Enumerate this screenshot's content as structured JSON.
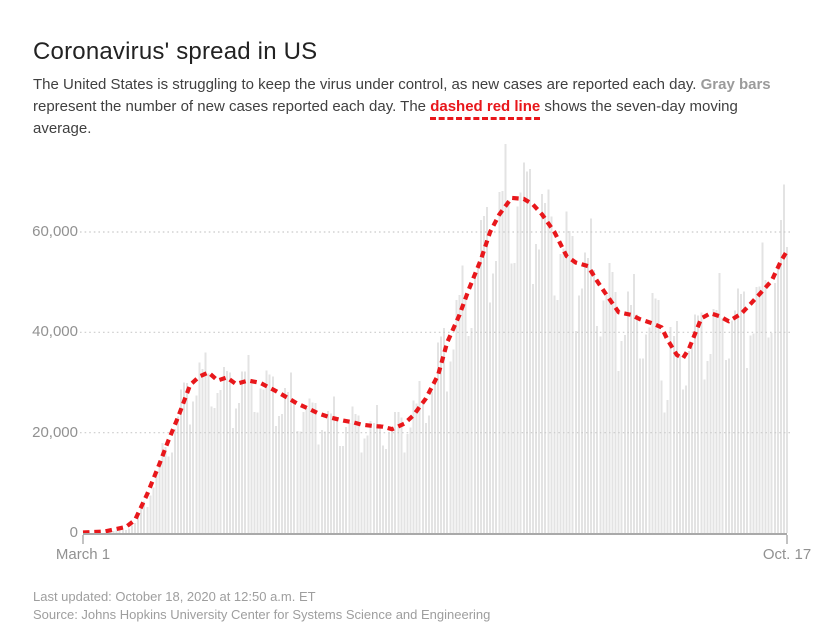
{
  "page": {
    "title": "Coronavirus' spread in US",
    "description": {
      "part1": "The United States is struggling to keep the virus under control, as new cases are reported each day. ",
      "bold_gray": "Gray bars",
      "part2": " represent the number of new cases reported each day. The ",
      "bold_red": "dashed red line",
      "part3": " shows the seven-day moving average."
    },
    "footer": {
      "last_updated": "Last updated: October 18, 2020 at 12:50 a.m. ET",
      "source": "Source: Johns Hopkins University Center for Systems Science and Engineering"
    }
  },
  "colors": {
    "accent_red": "#e8171b",
    "bar_gray": "#e3e3e3",
    "grid_gray": "#cbcbcb",
    "axis_gray": "#a9a9a9",
    "label_gray": "#919191",
    "title_dark": "#222222",
    "body_text": "#404040",
    "bold_gray_text": "#9b9b9b",
    "footer_gray": "#9e9e9e"
  },
  "chart_data": {
    "type": "bar+line",
    "title": "Coronavirus' spread in US",
    "xlabel": "",
    "ylabel": "",
    "x_axis": {
      "start_label": "March 1",
      "end_label": "Oct. 17",
      "days_total": 231
    },
    "y_ticks": [
      {
        "value": 0,
        "label": "0"
      },
      {
        "value": 20000,
        "label": "20,000"
      },
      {
        "value": 40000,
        "label": "40,000"
      },
      {
        "value": 60000,
        "label": "60,000"
      }
    ],
    "ylim": [
      0,
      78000
    ],
    "grid": "dotted horizontal gridlines at 20,000 / 40,000 / 60,000",
    "legend_position": "none (series explained in description text)",
    "series": [
      {
        "name": "New cases reported each day (gray bars)",
        "type": "bar",
        "color": "#e3e3e3",
        "values": [
          10,
          15,
          25,
          30,
          45,
          50,
          60,
          45,
          135,
          215,
          360,
          450,
          630,
          635,
          550,
          900,
          1500,
          2000,
          3800,
          5000,
          6300,
          5200,
          7500,
          9100,
          12100,
          13400,
          17900,
          17100,
          15300,
          16000,
          20700,
          23200,
          28600,
          30000,
          29900,
          21600,
          26200,
          27400,
          34000,
          32700,
          36000,
          31800,
          25200,
          24900,
          27900,
          28500,
          33100,
          32300,
          32000,
          20900,
          24800,
          25900,
          32200,
          32200,
          35500,
          29900,
          24100,
          24000,
          28800,
          28600,
          32400,
          31600,
          31200,
          21300,
          23300,
          23700,
          28900,
          28100,
          32000,
          25800,
          20300,
          20200,
          24100,
          24900,
          26800,
          26000,
          25900,
          17600,
          20500,
          20200,
          24300,
          23800,
          27200,
          23000,
          17300,
          17300,
          21100,
          21900,
          25200,
          23700,
          23400,
          16000,
          18800,
          19400,
          22300,
          21900,
          25500,
          21700,
          17400,
          16700,
          19900,
          20600,
          24100,
          24100,
          23000,
          16000,
          19700,
          21000,
          26400,
          25800,
          30300,
          26500,
          21900,
          23400,
          28200,
          30900,
          38000,
          39200,
          40900,
          28200,
          34200,
          36600,
          46400,
          47400,
          53300,
          46800,
          39300,
          40900,
          51100,
          52800,
          62400,
          63200,
          65000,
          45900,
          51700,
          54200,
          68000,
          68200,
          77500,
          66300,
          53700,
          53800,
          65100,
          67900,
          73900,
          72100,
          72600,
          49600,
          57600,
          56500,
          67600,
          65800,
          68500,
          63100,
          47300,
          46400,
          55600,
          56700,
          64100,
          60200,
          59200,
          40300,
          47300,
          48700,
          55900,
          54800,
          62700,
          52400,
          41300,
          39200,
          46300,
          47400,
          53800,
          52000,
          48000,
          32300,
          38300,
          39500,
          48100,
          45500,
          51600,
          43600,
          34800,
          34800,
          39600,
          41000,
          47800,
          46700,
          46400,
          30400,
          24000,
          26500,
          41100,
          39300,
          42300,
          35500,
          28600,
          29400,
          36300,
          37200,
          43600,
          43400,
          44000,
          30600,
          34300,
          35700,
          44700,
          44500,
          51800,
          42900,
          34500,
          34800,
          42400,
          44400,
          48700,
          47600,
          48100,
          32900,
          39400,
          39800,
          49000,
          49100,
          57900,
          50400,
          39000,
          39900,
          49800,
          53000,
          62400,
          69500,
          57000
        ]
      },
      {
        "name": "Seven-day moving average (dashed red line)",
        "type": "line",
        "style": "dashed",
        "color": "#e8171b",
        "points": [
          [
            0,
            100
          ],
          [
            7,
            300
          ],
          [
            14,
            1200
          ],
          [
            17,
            2600
          ],
          [
            21,
            7800
          ],
          [
            25,
            13800
          ],
          [
            28,
            18600
          ],
          [
            31,
            23000
          ],
          [
            35,
            29500
          ],
          [
            38,
            31200
          ],
          [
            41,
            32000
          ],
          [
            44,
            30400
          ],
          [
            47,
            31000
          ],
          [
            50,
            29700
          ],
          [
            54,
            30400
          ],
          [
            58,
            29900
          ],
          [
            63,
            28300
          ],
          [
            67,
            26900
          ],
          [
            70,
            25800
          ],
          [
            74,
            24700
          ],
          [
            77,
            23800
          ],
          [
            81,
            23000
          ],
          [
            85,
            22400
          ],
          [
            88,
            22100
          ],
          [
            91,
            21600
          ],
          [
            95,
            21300
          ],
          [
            98,
            21200
          ],
          [
            101,
            20700
          ],
          [
            105,
            21800
          ],
          [
            108,
            23500
          ],
          [
            112,
            26800
          ],
          [
            116,
            31500
          ],
          [
            119,
            38000
          ],
          [
            123,
            43500
          ],
          [
            126,
            48500
          ],
          [
            130,
            54500
          ],
          [
            133,
            60000
          ],
          [
            136,
            63500
          ],
          [
            140,
            66800
          ],
          [
            144,
            66600
          ],
          [
            147,
            65500
          ],
          [
            150,
            63500
          ],
          [
            154,
            60000
          ],
          [
            158,
            55200
          ],
          [
            161,
            53900
          ],
          [
            165,
            53200
          ],
          [
            168,
            50200
          ],
          [
            171,
            47500
          ],
          [
            175,
            44000
          ],
          [
            179,
            43500
          ],
          [
            182,
            42600
          ],
          [
            186,
            41800
          ],
          [
            189,
            41000
          ],
          [
            191,
            38500
          ],
          [
            194,
            35500
          ],
          [
            196,
            34800
          ],
          [
            198,
            36800
          ],
          [
            202,
            42800
          ],
          [
            205,
            43800
          ],
          [
            208,
            43200
          ],
          [
            211,
            42200
          ],
          [
            215,
            43700
          ],
          [
            218,
            45600
          ],
          [
            221,
            47600
          ],
          [
            225,
            50300
          ],
          [
            228,
            54200
          ],
          [
            230,
            56200
          ]
        ]
      }
    ]
  }
}
